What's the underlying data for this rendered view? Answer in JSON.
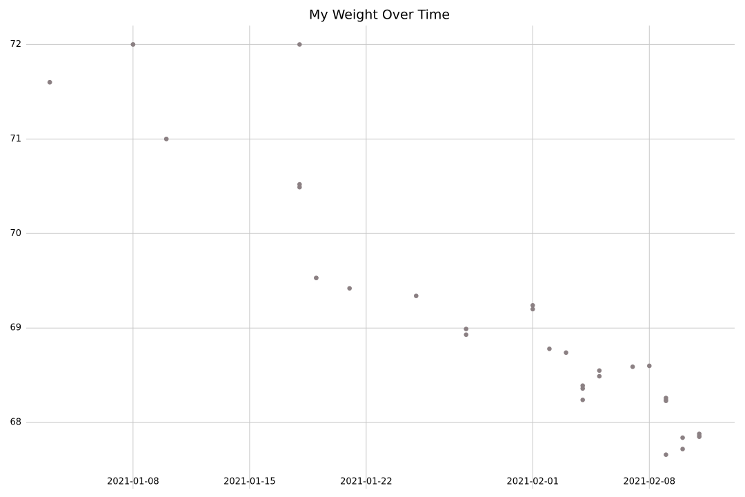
{
  "chart_data": {
    "type": "scatter",
    "title": "My Weight Over Time",
    "x": [
      "2021-01-03",
      "2021-01-03",
      "2021-01-08",
      "2021-01-08",
      "2021-01-10",
      "2021-01-10",
      "2021-01-18",
      "2021-01-18",
      "2021-01-18",
      "2021-01-19",
      "2021-01-19",
      "2021-01-21",
      "2021-01-25",
      "2021-01-28",
      "2021-01-28",
      "2021-02-01",
      "2021-02-01",
      "2021-02-02",
      "2021-02-03",
      "2021-02-04",
      "2021-02-04",
      "2021-02-04",
      "2021-02-05",
      "2021-02-05",
      "2021-02-07",
      "2021-02-08",
      "2021-02-09",
      "2021-02-09",
      "2021-02-09",
      "2021-02-09",
      "2021-02-10",
      "2021-02-10",
      "2021-02-11",
      "2021-02-11",
      "2021-02-11"
    ],
    "values": [
      71.6,
      71.6,
      72,
      72,
      71,
      71,
      72,
      70.52,
      70.49,
      69.53,
      69.53,
      69.42,
      69.34,
      68.99,
      68.93,
      69.24,
      69.2,
      68.78,
      68.74,
      68.39,
      68.36,
      68.24,
      68.55,
      68.49,
      68.59,
      68.6,
      68.26,
      68.24,
      68.23,
      67.66,
      67.84,
      67.72,
      67.88,
      67.86,
      67.85
    ],
    "color": "#8b8083",
    "xlim": [
      "2021-01-02",
      "2021-02-13"
    ],
    "xticks": [
      "2021-01-08",
      "2021-01-15",
      "2021-01-22",
      "2021-02-01",
      "2021-02-08"
    ],
    "ylim": [
      67.3,
      72.2
    ],
    "yticks": [
      68,
      69,
      70,
      71,
      72
    ],
    "grid": true
  }
}
